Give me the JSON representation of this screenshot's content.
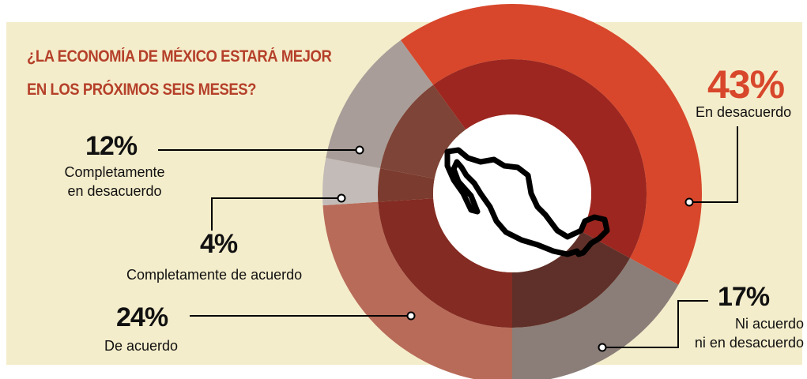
{
  "chart_data": {
    "type": "pie",
    "donut": true,
    "title_lines": [
      "¿LA ECONOMÍA DE MÉXICO ESTARÁ MEJOR",
      "EN LOS PRÓXIMOS SEIS MESES?"
    ],
    "categories": [
      "En desacuerdo",
      "Ni acuerdo\nni en desacuerdo",
      "De acuerdo",
      "Completamente de acuerdo",
      "Completamente\nen desacuerdo"
    ],
    "values": [
      43,
      17,
      24,
      4,
      12
    ],
    "value_labels": [
      "43%",
      "17%",
      "24%",
      "4%",
      "12%"
    ],
    "colors": [
      "#d8472b",
      "#8b7e79",
      "#b86b59",
      "#c3bbb8",
      "#a99d99"
    ],
    "inner_colors": [
      "#9d2620",
      "#5f3029",
      "#842b23",
      "#7b3b2f",
      "#7e4437"
    ]
  }
}
